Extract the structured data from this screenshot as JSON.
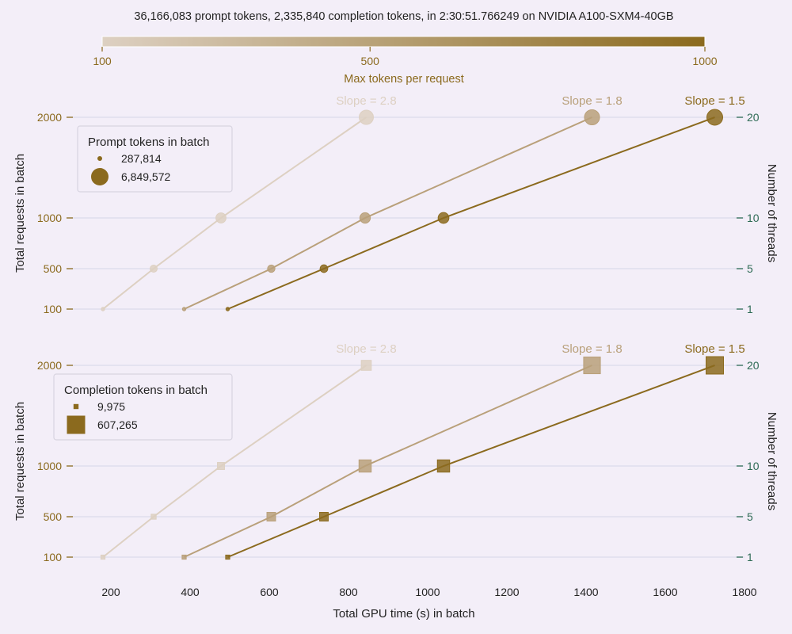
{
  "title": "36,166,083 prompt tokens, 2,335,840 completion tokens, in 2:30:51.766249 on NVIDIA A100-SXM4-40GB",
  "colors": {
    "background": "#f3eef8",
    "grid": "#dcdaea",
    "left_axis": "#8b6a1e",
    "right_axis": "#2e6b55",
    "text": "#222222",
    "series_100": "#ddd0c2",
    "series_500": "#b9a07a",
    "series_1000": "#8b6a1e"
  },
  "colorbar": {
    "label": "Max tokens per request",
    "ticks": [
      "100",
      "500",
      "1000"
    ],
    "range": [
      100,
      1000
    ]
  },
  "chart_data": [
    {
      "type": "scatter",
      "marker": "circle",
      "xlabel": "",
      "ylabel": "Total requests in batch",
      "ylabel_right": "Number of threads",
      "xlim": [
        100,
        1800
      ],
      "yticks_left": [
        "100",
        "500",
        "1000",
        "2000"
      ],
      "yticks_right": [
        "1",
        "5",
        "10",
        "20"
      ],
      "grid": true,
      "legend": {
        "title": "Prompt tokens in batch",
        "entries": [
          "287,814",
          "6,849,572"
        ],
        "placement": "upper-left"
      },
      "series": [
        {
          "max_tokens": 100,
          "slope_label": "Slope = 2.8",
          "color": "#ddd0c2",
          "points": [
            {
              "x": 180,
              "requests": 100,
              "size": 287814
            },
            {
              "x": 308,
              "requests": 500,
              "size": 1400000
            },
            {
              "x": 478,
              "requests": 1000,
              "size": 2800000
            },
            {
              "x": 845,
              "requests": 2000,
              "size": 5500000
            }
          ]
        },
        {
          "max_tokens": 500,
          "slope_label": "Slope = 1.8",
          "color": "#b9a07a",
          "points": [
            {
              "x": 385,
              "requests": 100,
              "size": 290000
            },
            {
              "x": 605,
              "requests": 500,
              "size": 1500000
            },
            {
              "x": 842,
              "requests": 1000,
              "size": 3000000
            },
            {
              "x": 1415,
              "requests": 2000,
              "size": 6200000
            }
          ]
        },
        {
          "max_tokens": 1000,
          "slope_label": "Slope = 1.5",
          "color": "#8b6a1e",
          "points": [
            {
              "x": 495,
              "requests": 100,
              "size": 300000
            },
            {
              "x": 738,
              "requests": 500,
              "size": 1600000
            },
            {
              "x": 1040,
              "requests": 1000,
              "size": 3200000
            },
            {
              "x": 1725,
              "requests": 2000,
              "size": 6849572
            }
          ]
        }
      ]
    },
    {
      "type": "scatter",
      "marker": "square",
      "xlabel": "Total GPU time (s) in batch",
      "ylabel": "Total requests in batch",
      "ylabel_right": "Number of threads",
      "xlim": [
        100,
        1800
      ],
      "xticks": [
        "200",
        "400",
        "600",
        "800",
        "1000",
        "1200",
        "1400",
        "1600",
        "1800"
      ],
      "yticks_left": [
        "100",
        "500",
        "1000",
        "2000"
      ],
      "yticks_right": [
        "1",
        "5",
        "10",
        "20"
      ],
      "grid": true,
      "legend": {
        "title": "Completion tokens in batch",
        "entries": [
          "9,975",
          "607,265"
        ],
        "placement": "upper-left"
      },
      "series": [
        {
          "max_tokens": 100,
          "slope_label": "Slope = 2.8",
          "color": "#ddd0c2",
          "points": [
            {
              "x": 180,
              "requests": 100,
              "size": 9975
            },
            {
              "x": 308,
              "requests": 500,
              "size": 50000
            },
            {
              "x": 478,
              "requests": 1000,
              "size": 100000
            },
            {
              "x": 845,
              "requests": 2000,
              "size": 200000
            }
          ]
        },
        {
          "max_tokens": 500,
          "slope_label": "Slope = 1.8",
          "color": "#b9a07a",
          "points": [
            {
              "x": 385,
              "requests": 100,
              "size": 30000
            },
            {
              "x": 605,
              "requests": 500,
              "size": 150000
            },
            {
              "x": 842,
              "requests": 1000,
              "size": 300000
            },
            {
              "x": 1415,
              "requests": 2000,
              "size": 560000
            }
          ]
        },
        {
          "max_tokens": 1000,
          "slope_label": "Slope = 1.5",
          "color": "#8b6a1e",
          "points": [
            {
              "x": 495,
              "requests": 100,
              "size": 30000
            },
            {
              "x": 738,
              "requests": 500,
              "size": 150000
            },
            {
              "x": 1040,
              "requests": 1000,
              "size": 300000
            },
            {
              "x": 1725,
              "requests": 2000,
              "size": 607265
            }
          ]
        }
      ]
    }
  ]
}
